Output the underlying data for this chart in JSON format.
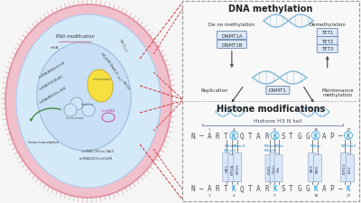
{
  "bg_color": "#f5f5f5",
  "cell_bg": "#f5f5f5",
  "outer_ellipse_fc": "#f2c8d0",
  "outer_ellipse_ec": "#e8a0b0",
  "inner_ellipse_fc": "#d5eaf8",
  "inner_ellipse_ec": "#aaccee",
  "nucleus_fc": "#c8dff5",
  "nucleus_ec": "#99bbdd",
  "nucleolus_fc": "#f0d840",
  "nucleolus_ec": "#c8b020",
  "dna_color": "#8bbedd",
  "arrow_color": "#444444",
  "red_dashed_color": "#cc3333",
  "title_dna": "DNA methylation",
  "title_histone": "Histone modifications",
  "histone_h3_label": "Histone H3 N tail",
  "dnmt1a_label": "DNMT1A",
  "dnmt1b_label": "DNMT1B",
  "dnmt1_label": "DNMT1",
  "tet1_label": "TET1",
  "tet2_label": "TET2",
  "tet3_label": "TET3",
  "de_novo_label": "De no methylation",
  "demethylation_label": "Demethylation",
  "replication_label": "Replication",
  "maintenance_label": "Maintenance\nmethylation",
  "enzyme_box_fc": "#dde8f8",
  "enzyme_box_ec": "#6688aa",
  "seq_color": "#555555",
  "k_highlight_color": "#44aadd",
  "enzyme_text_color": "#2277cc",
  "box_fc": "#d8e8f8",
  "box_ec": "#8899bb"
}
